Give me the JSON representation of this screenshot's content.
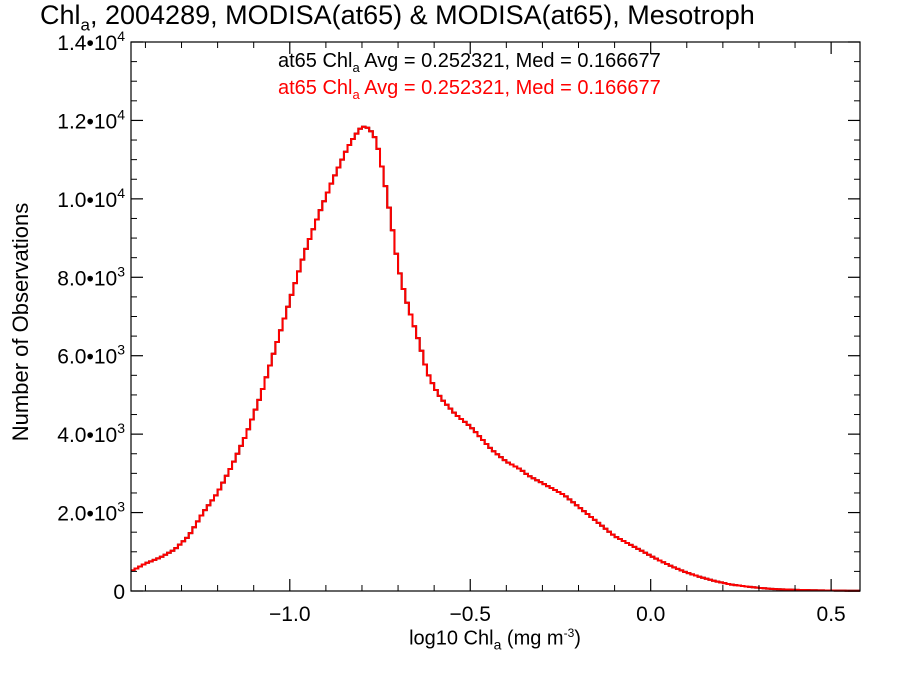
{
  "title": {
    "prefix": "Chl",
    "sub": "a",
    "rest": ", 2004289, MODISA(at65) & MODISA(at65), Mesotroph"
  },
  "stats": [
    {
      "prefix": "at65 Chl",
      "sub": "a",
      "rest": " Avg = 0.252321, Med = 0.166677",
      "color": "#000000"
    },
    {
      "prefix": "at65 Chl",
      "sub": "a",
      "rest": " Avg = 0.252321, Med = 0.166677",
      "color": "#ff0000"
    }
  ],
  "chart_data": {
    "type": "line",
    "step": true,
    "title": "Chla, 2004289, MODISA(at65) & MODISA(at65), Mesotroph",
    "xlabel": {
      "prefix": "log10 Chl",
      "sub": "a",
      "rest": " (mg m",
      "sup": "-3",
      "end": ")"
    },
    "ylabel": "Number of Observations",
    "xlim": [
      -1.44,
      0.58
    ],
    "ylim": [
      0,
      14000
    ],
    "x_ticks": [
      {
        "value": -1.0,
        "label": "−1.0"
      },
      {
        "value": -0.5,
        "label": "−0.5"
      },
      {
        "value": 0.0,
        "label": "0.0"
      },
      {
        "value": 0.5,
        "label": "0.5"
      }
    ],
    "y_ticks": [
      {
        "value": 0,
        "mant": "0",
        "exp": ""
      },
      {
        "value": 2000,
        "mant": "2.0•10",
        "exp": "3"
      },
      {
        "value": 4000,
        "mant": "4.0•10",
        "exp": "3"
      },
      {
        "value": 6000,
        "mant": "6.0•10",
        "exp": "3"
      },
      {
        "value": 8000,
        "mant": "8.0•10",
        "exp": "3"
      },
      {
        "value": 10000,
        "mant": "1.0•10",
        "exp": "4"
      },
      {
        "value": 12000,
        "mant": "1.2•10",
        "exp": "4"
      },
      {
        "value": 14000,
        "mant": "1.4•10",
        "exp": "4"
      }
    ],
    "series": [
      {
        "color": "#000000",
        "x": [
          -1.44,
          -1.4,
          -1.36,
          -1.32,
          -1.28,
          -1.24,
          -1.2,
          -1.16,
          -1.12,
          -1.08,
          -1.04,
          -1.0,
          -0.96,
          -0.92,
          -0.88,
          -0.86,
          -0.84,
          -0.82,
          -0.8,
          -0.78,
          -0.76,
          -0.74,
          -0.72,
          -0.7,
          -0.68,
          -0.66,
          -0.64,
          -0.62,
          -0.6,
          -0.58,
          -0.56,
          -0.54,
          -0.52,
          -0.5,
          -0.48,
          -0.46,
          -0.44,
          -0.42,
          -0.4,
          -0.38,
          -0.36,
          -0.34,
          -0.32,
          -0.3,
          -0.28,
          -0.26,
          -0.24,
          -0.22,
          -0.2,
          -0.18,
          -0.16,
          -0.14,
          -0.12,
          -0.1,
          -0.06,
          -0.02,
          0.02,
          0.06,
          0.1,
          0.14,
          0.18,
          0.22,
          0.26,
          0.3,
          0.34,
          0.38,
          0.42,
          0.46,
          0.5,
          0.54,
          0.58
        ],
        "y": [
          500,
          700,
          850,
          1050,
          1400,
          2000,
          2500,
          3200,
          4000,
          5000,
          6200,
          7400,
          8600,
          9600,
          10500,
          10900,
          11300,
          11600,
          11850,
          11800,
          11500,
          10600,
          9500,
          8300,
          7500,
          6900,
          6300,
          5600,
          5200,
          4900,
          4700,
          4500,
          4350,
          4200,
          4000,
          3800,
          3600,
          3450,
          3300,
          3200,
          3100,
          2950,
          2850,
          2750,
          2650,
          2550,
          2450,
          2300,
          2150,
          2000,
          1850,
          1700,
          1550,
          1400,
          1200,
          1000,
          800,
          620,
          470,
          350,
          250,
          170,
          120,
          80,
          50,
          35,
          25,
          18,
          12,
          8,
          5
        ]
      },
      {
        "color": "#ff0000",
        "x": [
          -1.44,
          -1.4,
          -1.36,
          -1.32,
          -1.28,
          -1.24,
          -1.2,
          -1.16,
          -1.12,
          -1.08,
          -1.04,
          -1.0,
          -0.96,
          -0.92,
          -0.88,
          -0.86,
          -0.84,
          -0.82,
          -0.8,
          -0.78,
          -0.76,
          -0.74,
          -0.72,
          -0.7,
          -0.68,
          -0.66,
          -0.64,
          -0.62,
          -0.6,
          -0.58,
          -0.56,
          -0.54,
          -0.52,
          -0.5,
          -0.48,
          -0.46,
          -0.44,
          -0.42,
          -0.4,
          -0.38,
          -0.36,
          -0.34,
          -0.32,
          -0.3,
          -0.28,
          -0.26,
          -0.24,
          -0.22,
          -0.2,
          -0.18,
          -0.16,
          -0.14,
          -0.12,
          -0.1,
          -0.06,
          -0.02,
          0.02,
          0.06,
          0.1,
          0.14,
          0.18,
          0.22,
          0.26,
          0.3,
          0.34,
          0.38,
          0.42,
          0.46,
          0.5,
          0.54,
          0.58
        ],
        "y": [
          500,
          700,
          850,
          1050,
          1400,
          2000,
          2500,
          3200,
          4000,
          5000,
          6200,
          7400,
          8600,
          9600,
          10500,
          10900,
          11300,
          11600,
          11850,
          11800,
          11500,
          10600,
          9500,
          8300,
          7500,
          6900,
          6300,
          5600,
          5200,
          4900,
          4700,
          4500,
          4350,
          4200,
          4000,
          3800,
          3600,
          3450,
          3300,
          3200,
          3100,
          2950,
          2850,
          2750,
          2650,
          2550,
          2450,
          2300,
          2150,
          2000,
          1850,
          1700,
          1550,
          1400,
          1200,
          1000,
          800,
          620,
          470,
          350,
          250,
          170,
          120,
          80,
          50,
          35,
          25,
          18,
          12,
          8,
          5
        ]
      }
    ]
  }
}
